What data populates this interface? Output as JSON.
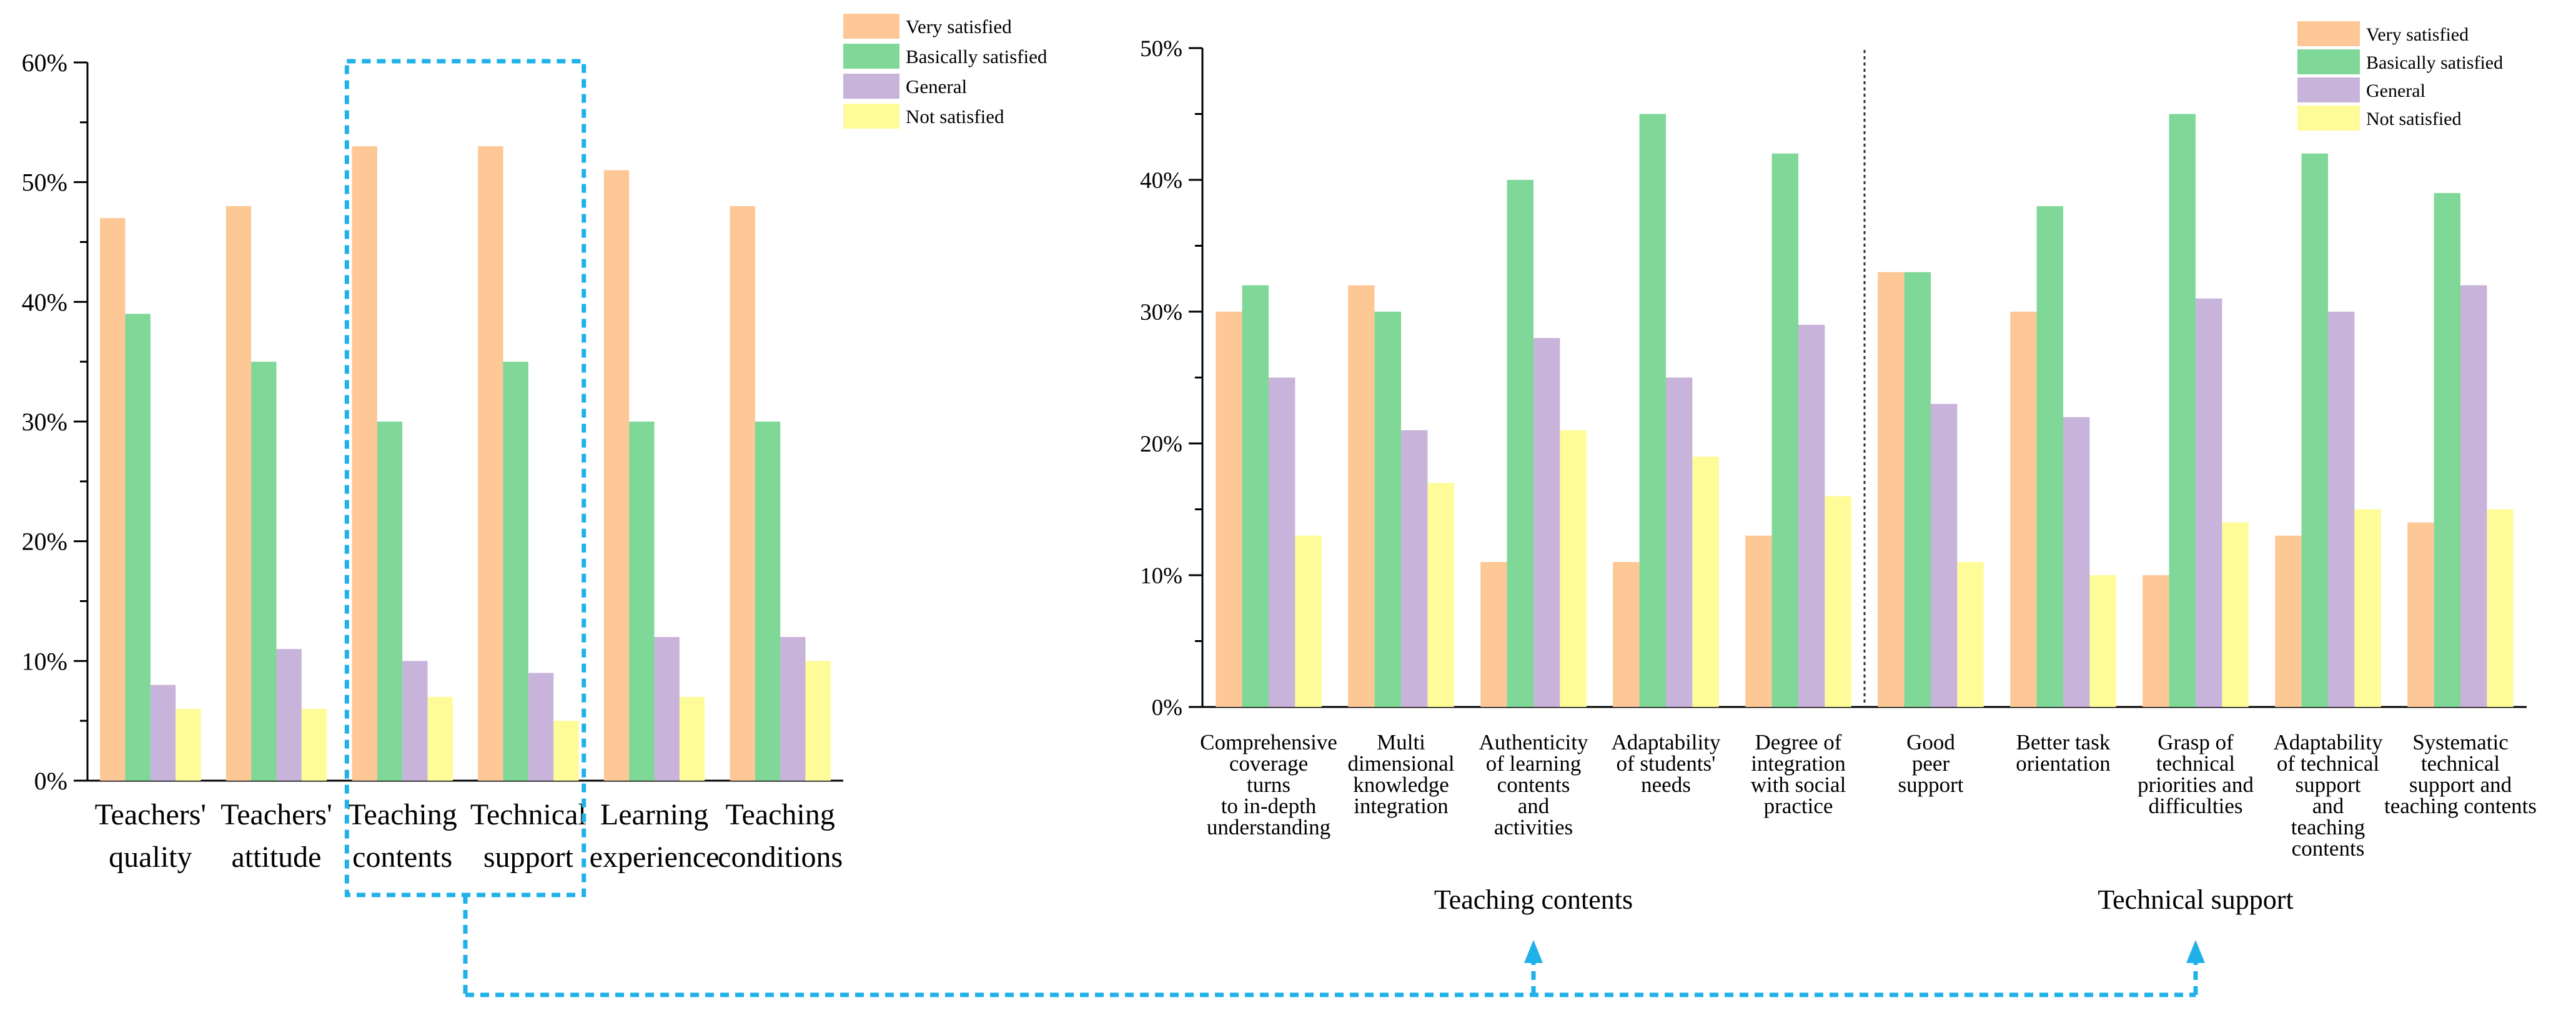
{
  "colors": {
    "very_satisfied": "#FDC796",
    "basically_satisfied": "#7FD897",
    "general": "#C8B3DA",
    "not_satisfied": "#FEFC98",
    "highlight": "#1FB1E8",
    "axis": "#000000"
  },
  "chart_data": [
    {
      "type": "bar",
      "title": "",
      "xlabel": "",
      "ylabel": "",
      "ylim": [
        0,
        60
      ],
      "yticks": [
        "0%",
        "10%",
        "20%",
        "30%",
        "40%",
        "50%",
        "60%"
      ],
      "categories": [
        [
          "Teachers'",
          "quality"
        ],
        [
          "Teachers'",
          "attitude"
        ],
        [
          "Teaching",
          "contents"
        ],
        [
          "Technical",
          "support"
        ],
        [
          "Learning",
          "experience"
        ],
        [
          "Teaching",
          "conditions"
        ]
      ],
      "series": [
        {
          "name": "Very satisfied",
          "values": [
            47,
            48,
            53,
            53,
            51,
            48
          ]
        },
        {
          "name": "Basically satisfied",
          "values": [
            39,
            35,
            30,
            35,
            30,
            30
          ]
        },
        {
          "name": "General",
          "values": [
            8,
            11,
            10,
            9,
            12,
            12
          ]
        },
        {
          "name": "Not satisfied",
          "values": [
            6,
            6,
            7,
            5,
            7,
            10
          ]
        }
      ],
      "legend": "top-right",
      "highlighted_categories": [
        2,
        3
      ]
    },
    {
      "type": "bar",
      "title": "",
      "xlabel": "",
      "ylabel": "",
      "ylim": [
        0,
        50
      ],
      "yticks": [
        "0%",
        "10%",
        "20%",
        "30%",
        "40%",
        "50%"
      ],
      "categories": [
        [
          "Comprehensive",
          "coverage",
          "turns",
          "to in-depth",
          "understanding"
        ],
        [
          "Multi",
          "dimensional",
          "knowledge",
          "integration"
        ],
        [
          "Authenticity",
          "of learning",
          "contents",
          "and",
          "activities"
        ],
        [
          "Adaptability",
          "of students'",
          "needs"
        ],
        [
          "Degree of",
          "integration",
          "with social",
          "practice"
        ],
        [
          "Good",
          "peer",
          "support"
        ],
        [
          "Better task",
          "orientation"
        ],
        [
          "Grasp of",
          "technical",
          "priorities and",
          "difficulties"
        ],
        [
          "Adaptability",
          "of technical",
          "support",
          "and",
          "teaching",
          "contents"
        ],
        [
          "Systematic",
          "technical",
          "support and",
          "teaching contents"
        ]
      ],
      "series": [
        {
          "name": "Very satisfied",
          "values": [
            30,
            32,
            11,
            11,
            13,
            33,
            30,
            10,
            13,
            14
          ]
        },
        {
          "name": "Basically satisfied",
          "values": [
            32,
            30,
            40,
            45,
            42,
            33,
            38,
            45,
            42,
            39
          ]
        },
        {
          "name": "General",
          "values": [
            25,
            21,
            28,
            25,
            29,
            23,
            22,
            31,
            30,
            32
          ]
        },
        {
          "name": "Not satisfied",
          "values": [
            13,
            17,
            21,
            19,
            16,
            11,
            10,
            14,
            15,
            15
          ]
        }
      ],
      "legend": "top-right",
      "groups": [
        {
          "label": "Teaching contents",
          "categories": [
            0,
            1,
            2,
            3,
            4
          ]
        },
        {
          "label": "Technical support",
          "categories": [
            5,
            6,
            7,
            8,
            9
          ]
        }
      ]
    }
  ]
}
